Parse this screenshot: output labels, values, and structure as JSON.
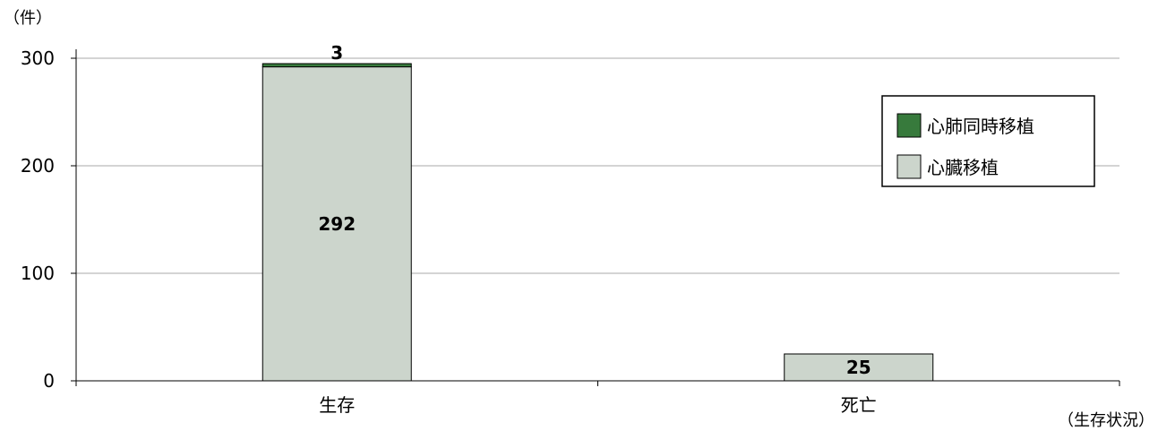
{
  "chart_data": {
    "type": "bar",
    "stacked": true,
    "categories": [
      "生存",
      "死亡"
    ],
    "series": [
      {
        "name": "心臓移植",
        "values": [
          292,
          25
        ],
        "color": "#ccd5cc"
      },
      {
        "name": "心肺同時移植",
        "values": [
          3,
          0
        ],
        "color": "#377a3c"
      }
    ],
    "data_labels": [
      {
        "category": "生存",
        "series": "心臓移植",
        "text": "292"
      },
      {
        "category": "生存",
        "series": "心肺同時移植",
        "text": "3"
      },
      {
        "category": "死亡",
        "series": "心臓移植",
        "text": "25"
      }
    ],
    "y_unit_label": "（件）",
    "x_unit_label": "（生存状況）",
    "yticks": [
      0,
      100,
      200,
      300
    ],
    "ylim": [
      0,
      300
    ],
    "grid": true,
    "legend_position": "top-right"
  }
}
